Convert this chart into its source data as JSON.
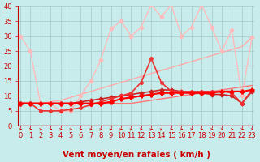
{
  "xlabel": "Vent moyen/en rafales ( km/h )",
  "bg_color": "#c8ecec",
  "grid_color": "#aacccc",
  "x": [
    0,
    1,
    2,
    3,
    4,
    5,
    6,
    7,
    8,
    9,
    10,
    11,
    12,
    13,
    14,
    15,
    16,
    17,
    18,
    19,
    20,
    21,
    22,
    23
  ],
  "xlim": [
    -0.2,
    23.2
  ],
  "ylim": [
    0,
    40
  ],
  "yticks": [
    0,
    5,
    10,
    15,
    20,
    25,
    30,
    35,
    40
  ],
  "lines": [
    {
      "y": [
        7.5,
        7.5,
        7.5,
        7.5,
        7.5,
        7.5,
        7.5,
        7.5,
        7.5,
        8.0,
        9.0,
        9.5,
        10.0,
        10.5,
        11.0,
        11.0,
        11.0,
        11.0,
        11.0,
        11.0,
        11.5,
        11.5,
        11.5,
        12.0
      ],
      "color": "#ff0000",
      "lw": 1.5,
      "marker": "P",
      "markersize": 3.5,
      "zorder": 5
    },
    {
      "y": [
        7.5,
        7.5,
        7.5,
        7.5,
        7.5,
        7.5,
        8.0,
        8.5,
        9.0,
        9.5,
        10.0,
        10.5,
        11.0,
        11.5,
        12.0,
        12.0,
        11.5,
        11.0,
        11.0,
        10.5,
        10.5,
        10.0,
        7.5,
        11.5
      ],
      "color": "#cc2222",
      "lw": 1.2,
      "marker": "D",
      "markersize": 2.5,
      "zorder": 4
    },
    {
      "y": [
        7.5,
        7.5,
        5.0,
        5.0,
        5.0,
        5.5,
        6.0,
        7.0,
        8.0,
        9.0,
        10.0,
        11.0,
        14.5,
        22.5,
        14.5,
        11.5,
        11.5,
        11.5,
        11.5,
        11.5,
        11.5,
        11.0,
        7.5,
        12.0
      ],
      "color": "#ee3333",
      "lw": 1.2,
      "marker": "o",
      "markersize": 2.5,
      "zorder": 4
    },
    {
      "y": [
        7.5,
        7.5,
        7.5,
        8.0,
        8.5,
        9.5,
        10.5,
        11.5,
        12.5,
        13.5,
        14.5,
        15.5,
        16.5,
        17.5,
        18.5,
        19.5,
        20.5,
        21.5,
        22.5,
        23.5,
        24.5,
        25.5,
        26.5,
        29.5
      ],
      "color": "#ffaaaa",
      "lw": 1.0,
      "marker": null,
      "markersize": 0,
      "zorder": 2
    },
    {
      "y": [
        30.0,
        25.0,
        7.5,
        7.5,
        5.0,
        5.0,
        10.0,
        15.0,
        22.0,
        32.5,
        35.0,
        30.0,
        33.0,
        40.5,
        36.5,
        40.5,
        30.0,
        33.0,
        40.5,
        33.0,
        25.0,
        32.0,
        10.0,
        29.5
      ],
      "color": "#ffbbbb",
      "lw": 1.0,
      "marker": "D",
      "markersize": 2.5,
      "zorder": 2
    },
    {
      "y": [
        7.5,
        7.5,
        7.5,
        7.5,
        7.5,
        7.5,
        7.5,
        7.5,
        7.5,
        7.5,
        7.5,
        7.5,
        8.0,
        8.5,
        9.0,
        9.5,
        10.0,
        10.5,
        11.0,
        11.5,
        12.0,
        12.5,
        13.0,
        13.5
      ],
      "color": "#ff7777",
      "lw": 1.0,
      "marker": null,
      "markersize": 0,
      "zorder": 3
    }
  ],
  "tick_color": "#cc0000",
  "label_color": "#cc0000",
  "tick_fontsize": 6,
  "label_fontsize": 7.5,
  "arrow_angles": [
    0,
    0,
    0,
    0,
    0,
    20,
    25,
    30,
    30,
    35,
    35,
    35,
    35,
    35,
    35,
    30,
    25,
    20,
    15,
    10,
    5,
    0,
    0,
    0
  ]
}
